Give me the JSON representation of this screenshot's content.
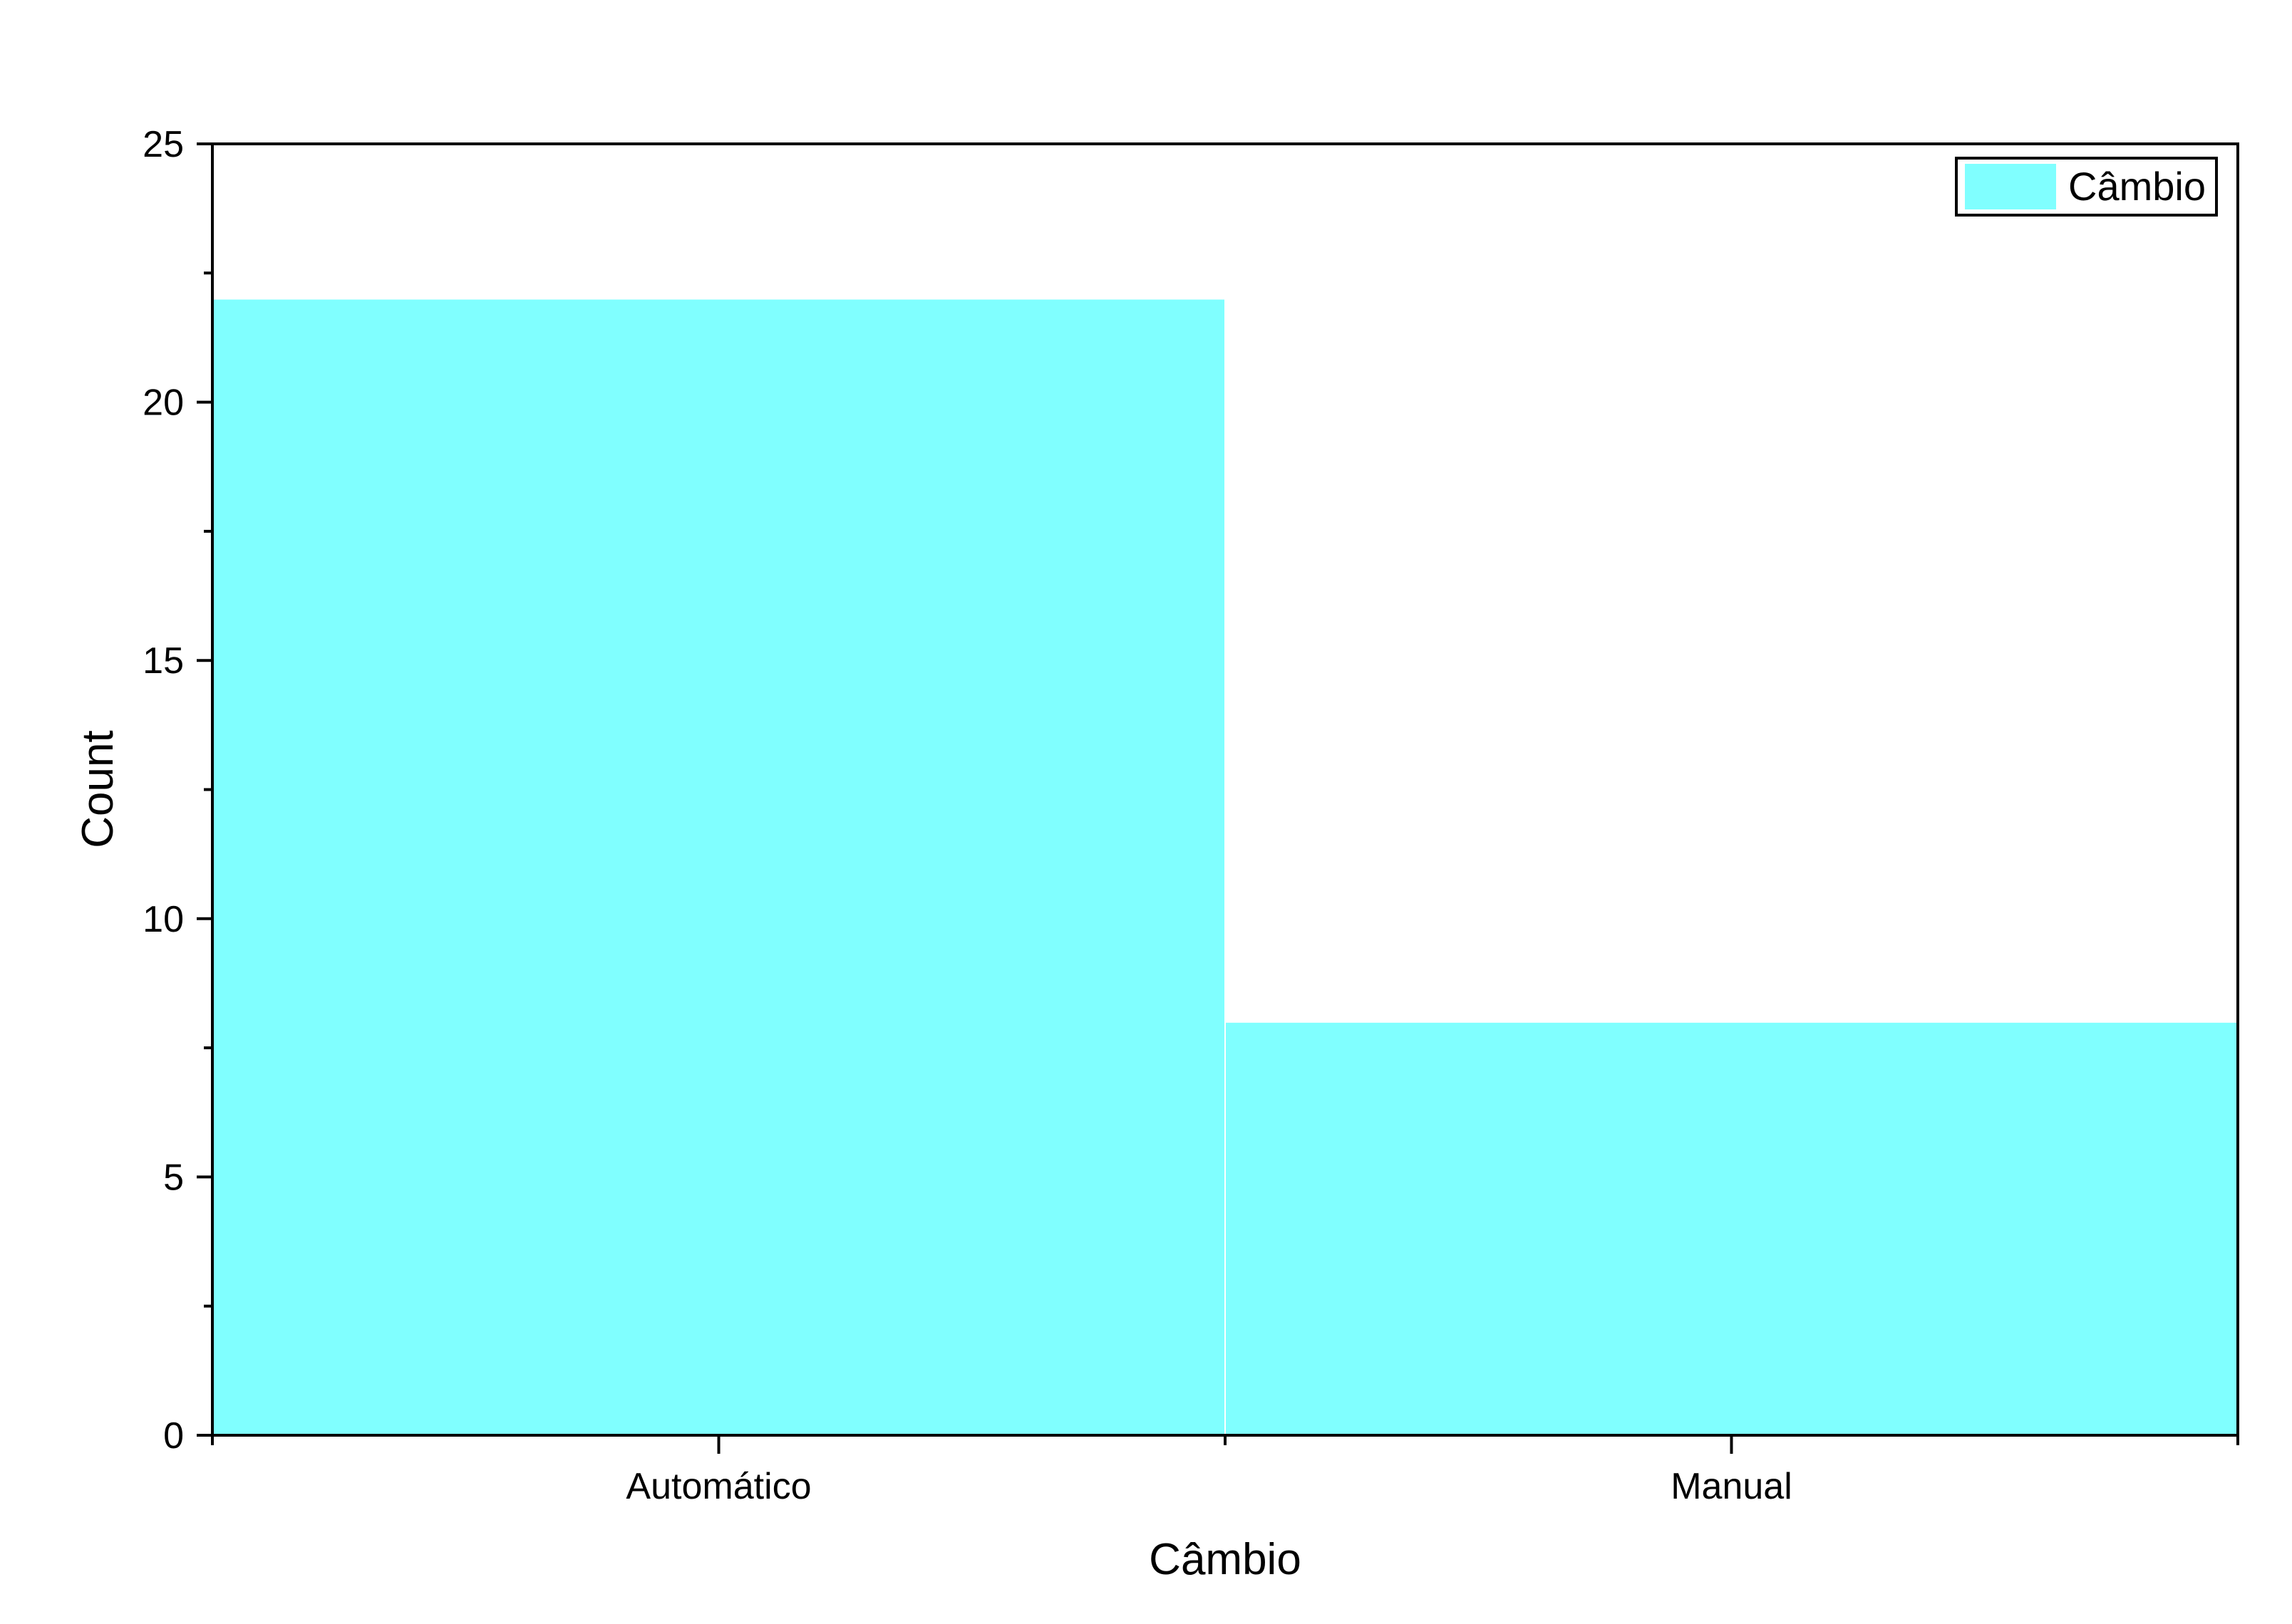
{
  "chart_data": {
    "type": "bar",
    "categories": [
      "Automático",
      "Manual"
    ],
    "series": [
      {
        "name": "Câmbio",
        "values": [
          22,
          8
        ]
      }
    ],
    "title": "",
    "xlabel": "Câmbio",
    "ylabel": "Count",
    "ylim": [
      0,
      25
    ],
    "yticks": [
      0,
      5,
      10,
      15,
      20,
      25
    ],
    "ytick_labels": [
      "0",
      "5",
      "10",
      "15",
      "20",
      "25"
    ],
    "grid": false,
    "legend_position": "top-right",
    "bar_color": "#80FFFF"
  }
}
